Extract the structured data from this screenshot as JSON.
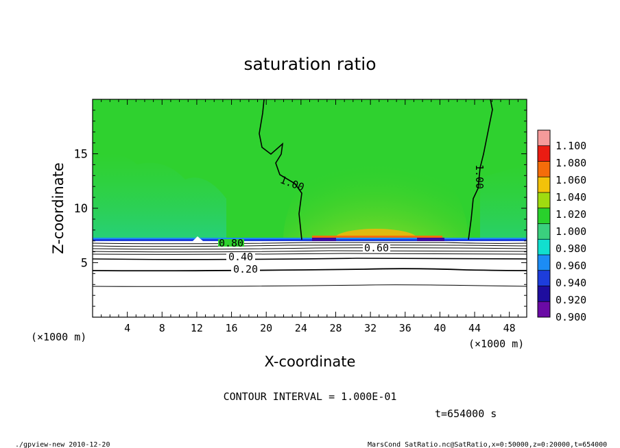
{
  "chart_data": {
    "type": "heatmap",
    "title": "saturation ratio",
    "xlabel": "X-coordinate",
    "ylabel": "Z-coordinate",
    "x_unit": "(×1000 m)",
    "y_unit": "(×1000 m)",
    "xlim": [
      0,
      50
    ],
    "ylim": [
      0,
      20
    ],
    "x_ticks": [
      4,
      8,
      12,
      16,
      20,
      24,
      28,
      32,
      36,
      40,
      44,
      48
    ],
    "y_ticks": [
      5,
      10,
      15
    ],
    "colorbar": {
      "levels": [
        "0.900",
        "0.920",
        "0.940",
        "0.960",
        "0.980",
        "1.000",
        "1.020",
        "1.040",
        "1.060",
        "1.080",
        "1.100"
      ],
      "colors": [
        "#6a0aa5",
        "#1e0d9e",
        "#1d3ddb",
        "#1c8cf5",
        "#11dfcf",
        "#3ad07e",
        "#29d12c",
        "#9fdb10",
        "#f2c20a",
        "#f46d0a",
        "#ea1c12",
        "#f59a9a"
      ]
    },
    "contour_labels": [
      "1.00",
      "1.00",
      "0.80",
      "0.60",
      "0.40",
      "0.20"
    ],
    "contour_interval": "CONTOUR INTERVAL = 1.000E-01",
    "time": "t=654000 s",
    "footer_left": "./gpview-new  2010-12-20",
    "footer_right": "MarsCond_SatRatio.nc@SatRatio,x=0:50000,z=0:20000,t=654000"
  }
}
